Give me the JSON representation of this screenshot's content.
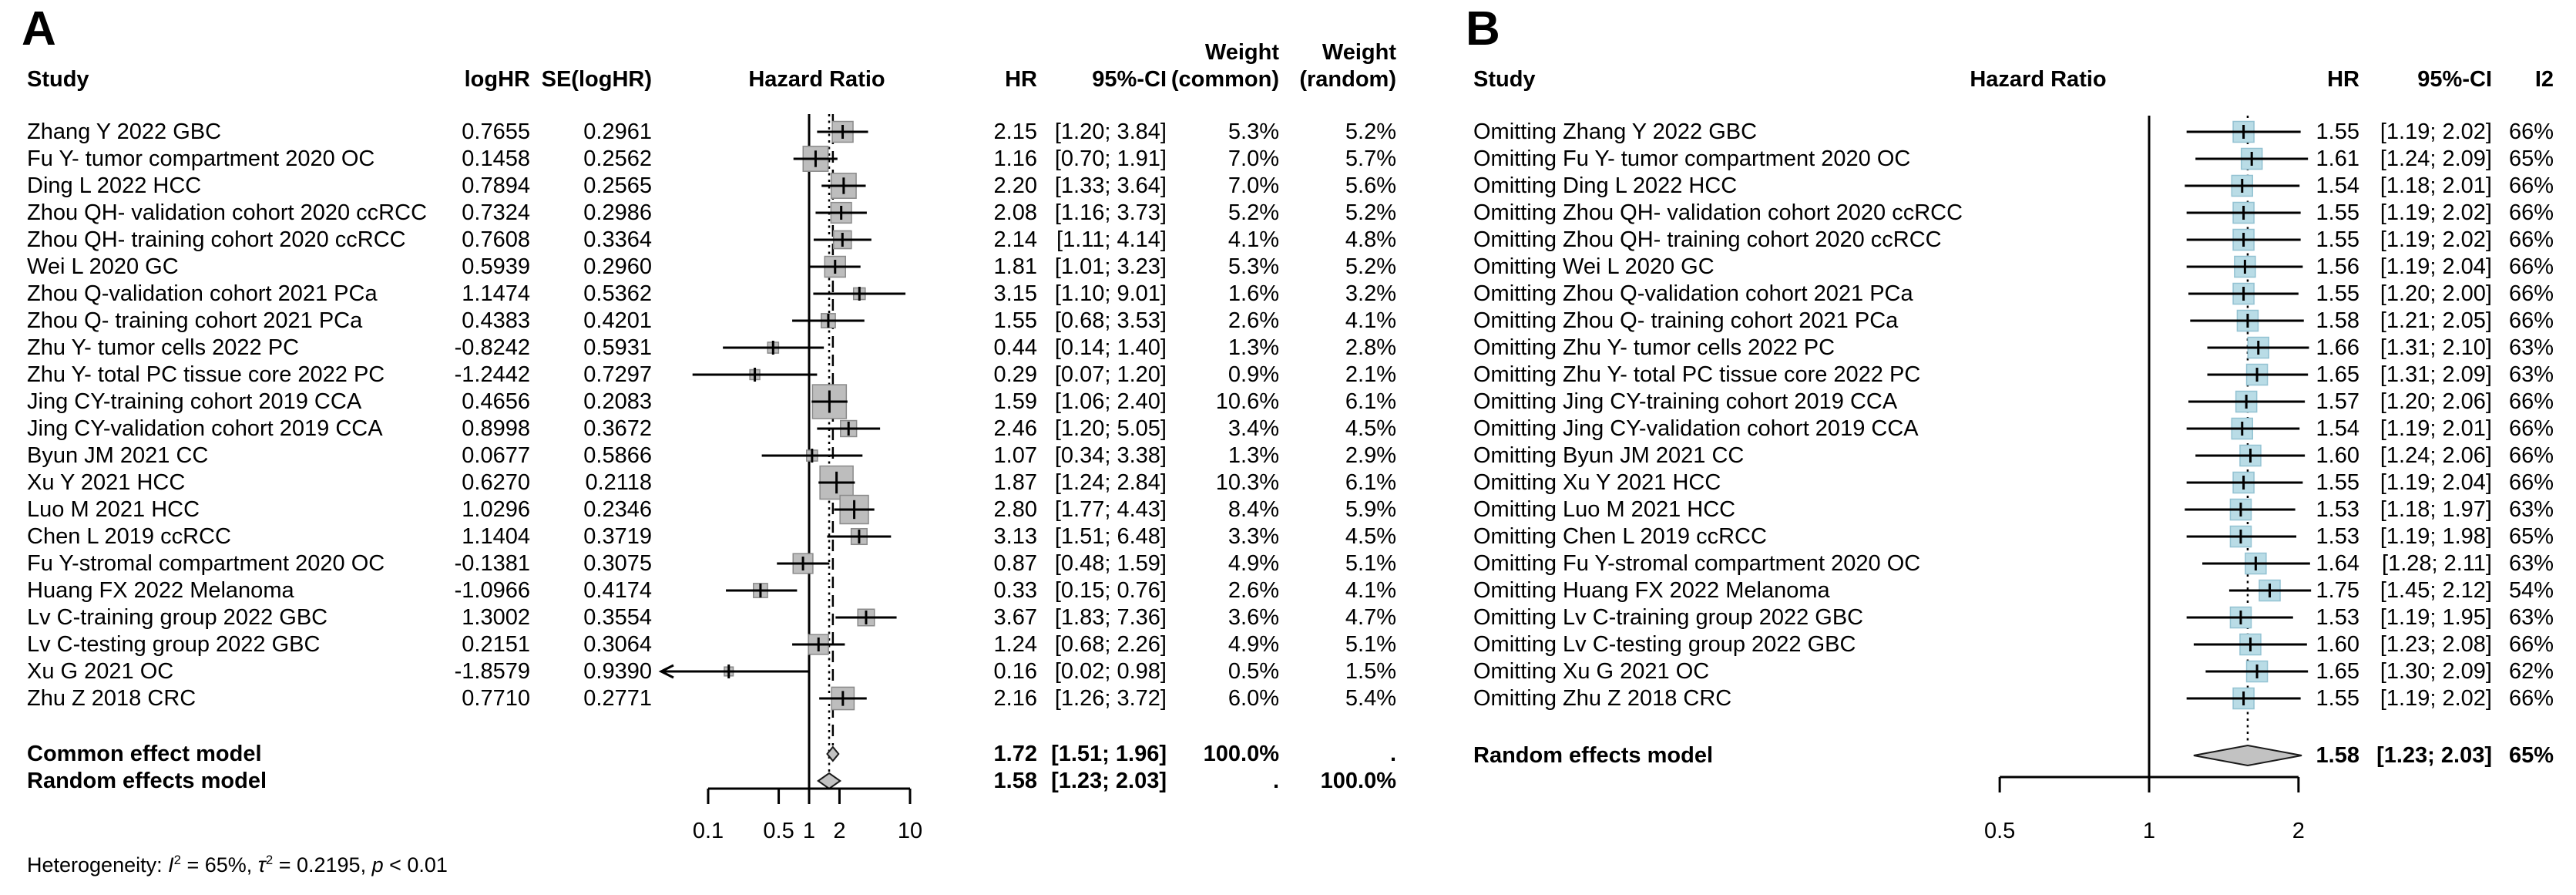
{
  "panelA": {
    "label": "A",
    "headers": {
      "study": "Study",
      "loghr": "logHR",
      "se": "SE(logHR)",
      "plot": "Hazard Ratio",
      "hr": "HR",
      "ci": "95%-CI",
      "weight": "Weight",
      "common": "(common)",
      "random": "(random)"
    },
    "heterogeneity": {
      "label": "Heterogeneity: ",
      "i_sym": "I",
      "sup": "2",
      "eq": " = ",
      "i2": "65%",
      "sep": ", ",
      "tau_sym": "τ",
      "eq2": " = ",
      "tau2": "0.2195",
      "sep2": ", ",
      "p_sym": "p",
      "end": " < 0.01"
    }
  },
  "panelB": {
    "label": "B",
    "headers": {
      "study": "Study",
      "plot": "Hazard Ratio",
      "hr": "HR",
      "ci": "95%-CI",
      "i2": "I2"
    }
  },
  "chart_data": [
    {
      "type": "forest",
      "panel": "A",
      "title": "Hazard Ratio",
      "xscale": "log",
      "xticks": [
        0.1,
        0.5,
        1,
        2,
        10
      ],
      "reference_line": 1,
      "heterogeneity_note": "I2 = 65%, tau2 = 0.2195, p < 0.01",
      "studies": [
        {
          "name": "Zhang Y 2022 GBC",
          "logHR": "0.7655",
          "SE": "0.2961",
          "hr": 2.15,
          "lo": 1.2,
          "hi": 3.84,
          "w_common": 5.3,
          "w_random": 5.2
        },
        {
          "name": "Fu Y- tumor compartment 2020 OC",
          "logHR": "0.1458",
          "SE": "0.2562",
          "hr": 1.16,
          "lo": 0.7,
          "hi": 1.91,
          "w_common": 7.0,
          "w_random": 5.7
        },
        {
          "name": "Ding L 2022 HCC",
          "logHR": "0.7894",
          "SE": "0.2565",
          "hr": 2.2,
          "lo": 1.33,
          "hi": 3.64,
          "w_common": 7.0,
          "w_random": 5.6
        },
        {
          "name": "Zhou QH- validation cohort 2020 ccRCC",
          "logHR": "0.7324",
          "SE": "0.2986",
          "hr": 2.08,
          "lo": 1.16,
          "hi": 3.73,
          "w_common": 5.2,
          "w_random": 5.2
        },
        {
          "name": "Zhou QH- training cohort 2020 ccRCC",
          "logHR": "0.7608",
          "SE": "0.3364",
          "hr": 2.14,
          "lo": 1.11,
          "hi": 4.14,
          "w_common": 4.1,
          "w_random": 4.8
        },
        {
          "name": "Wei L 2020 GC",
          "logHR": "0.5939",
          "SE": "0.2960",
          "hr": 1.81,
          "lo": 1.01,
          "hi": 3.23,
          "w_common": 5.3,
          "w_random": 5.2
        },
        {
          "name": "Zhou Q-validation cohort 2021 PCa",
          "logHR": "1.1474",
          "SE": "0.5362",
          "hr": 3.15,
          "lo": 1.1,
          "hi": 9.01,
          "w_common": 1.6,
          "w_random": 3.2
        },
        {
          "name": "Zhou Q- training cohort 2021 PCa",
          "logHR": "0.4383",
          "SE": "0.4201",
          "hr": 1.55,
          "lo": 0.68,
          "hi": 3.53,
          "w_common": 2.6,
          "w_random": 4.1
        },
        {
          "name": "Zhu Y- tumor cells 2022 PC",
          "logHR": "-0.8242",
          "SE": "0.5931",
          "hr": 0.44,
          "lo": 0.14,
          "hi": 1.4,
          "w_common": 1.3,
          "w_random": 2.8
        },
        {
          "name": "Zhu Y- total PC tissue core 2022 PC",
          "logHR": "-1.2442",
          "SE": "0.7297",
          "hr": 0.29,
          "lo": 0.07,
          "hi": 1.2,
          "w_common": 0.9,
          "w_random": 2.1
        },
        {
          "name": "Jing CY-training cohort 2019 CCA",
          "logHR": "0.4656",
          "SE": "0.2083",
          "hr": 1.59,
          "lo": 1.06,
          "hi": 2.4,
          "w_common": 10.6,
          "w_random": 6.1
        },
        {
          "name": "Jing CY-validation cohort 2019 CCA",
          "logHR": "0.8998",
          "SE": "0.3672",
          "hr": 2.46,
          "lo": 1.2,
          "hi": 5.05,
          "w_common": 3.4,
          "w_random": 4.5
        },
        {
          "name": "Byun JM 2021 CC",
          "logHR": "0.0677",
          "SE": "0.5866",
          "hr": 1.07,
          "lo": 0.34,
          "hi": 3.38,
          "w_common": 1.3,
          "w_random": 2.9
        },
        {
          "name": "Xu Y 2021 HCC",
          "logHR": "0.6270",
          "SE": "0.2118",
          "hr": 1.87,
          "lo": 1.24,
          "hi": 2.84,
          "w_common": 10.3,
          "w_random": 6.1
        },
        {
          "name": "Luo M 2021 HCC",
          "logHR": "1.0296",
          "SE": "0.2346",
          "hr": 2.8,
          "lo": 1.77,
          "hi": 4.43,
          "w_common": 8.4,
          "w_random": 5.9
        },
        {
          "name": "Chen L 2019 ccRCC",
          "logHR": "1.1404",
          "SE": "0.3719",
          "hr": 3.13,
          "lo": 1.51,
          "hi": 6.48,
          "w_common": 3.3,
          "w_random": 4.5
        },
        {
          "name": "Fu Y-stromal compartment 2020 OC",
          "logHR": "-0.1381",
          "SE": "0.3075",
          "hr": 0.87,
          "lo": 0.48,
          "hi": 1.59,
          "w_common": 4.9,
          "w_random": 5.1
        },
        {
          "name": "Huang FX 2022 Melanoma",
          "logHR": "-1.0966",
          "SE": "0.4174",
          "hr": 0.33,
          "lo": 0.15,
          "hi": 0.76,
          "w_common": 2.6,
          "w_random": 4.1
        },
        {
          "name": "Lv C-training group 2022 GBC",
          "logHR": "1.3002",
          "SE": "0.3554",
          "hr": 3.67,
          "lo": 1.83,
          "hi": 7.36,
          "w_common": 3.6,
          "w_random": 4.7
        },
        {
          "name": "Lv C-testing group 2022 GBC",
          "logHR": "0.2151",
          "SE": "0.3064",
          "hr": 1.24,
          "lo": 0.68,
          "hi": 2.26,
          "w_common": 4.9,
          "w_random": 5.1
        },
        {
          "name": "Xu G 2021 OC",
          "logHR": "-1.8579",
          "SE": "0.9390",
          "hr": 0.16,
          "lo": 0.02,
          "hi": 0.98,
          "w_common": 0.5,
          "w_random": 1.5
        },
        {
          "name": "Zhu Z 2018 CRC",
          "logHR": "0.7710",
          "SE": "0.2771",
          "hr": 2.16,
          "lo": 1.26,
          "hi": 3.72,
          "w_common": 6.0,
          "w_random": 5.4
        }
      ],
      "common_effect": {
        "label": "Common effect model",
        "hr": 1.72,
        "lo": 1.51,
        "hi": 1.96,
        "w_common": "100.0%",
        "w_random": "."
      },
      "random_effects": {
        "label": "Random effects model",
        "hr": 1.58,
        "lo": 1.23,
        "hi": 2.03,
        "w_common": ".",
        "w_random": "100.0%"
      }
    },
    {
      "type": "forest",
      "panel": "B",
      "title": "Hazard Ratio",
      "xscale": "log",
      "xticks": [
        0.5,
        1,
        2
      ],
      "reference_line": 1,
      "studies": [
        {
          "name": "Omitting Zhang Y 2022 GBC",
          "hr": 1.55,
          "lo": 1.19,
          "hi": 2.02,
          "i2": "66%"
        },
        {
          "name": "Omitting Fu Y- tumor compartment 2020 OC",
          "hr": 1.61,
          "lo": 1.24,
          "hi": 2.09,
          "i2": "65%"
        },
        {
          "name": "Omitting Ding L 2022 HCC",
          "hr": 1.54,
          "lo": 1.18,
          "hi": 2.01,
          "i2": "66%"
        },
        {
          "name": "Omitting Zhou QH- validation cohort 2020 ccRCC",
          "hr": 1.55,
          "lo": 1.19,
          "hi": 2.02,
          "i2": "66%"
        },
        {
          "name": "Omitting Zhou QH- training cohort 2020 ccRCC",
          "hr": 1.55,
          "lo": 1.19,
          "hi": 2.02,
          "i2": "66%"
        },
        {
          "name": "Omitting Wei L 2020 GC",
          "hr": 1.56,
          "lo": 1.19,
          "hi": 2.04,
          "i2": "66%"
        },
        {
          "name": "Omitting Zhou Q-validation cohort 2021 PCa",
          "hr": 1.55,
          "lo": 1.2,
          "hi": 2.0,
          "i2": "66%"
        },
        {
          "name": "Omitting Zhou Q- training cohort 2021 PCa",
          "hr": 1.58,
          "lo": 1.21,
          "hi": 2.05,
          "i2": "66%"
        },
        {
          "name": "Omitting Zhu Y- tumor cells 2022 PC",
          "hr": 1.66,
          "lo": 1.31,
          "hi": 2.1,
          "i2": "63%"
        },
        {
          "name": "Omitting Zhu Y- total PC tissue core 2022 PC",
          "hr": 1.65,
          "lo": 1.31,
          "hi": 2.09,
          "i2": "63%"
        },
        {
          "name": "Omitting Jing CY-training cohort 2019 CCA",
          "hr": 1.57,
          "lo": 1.2,
          "hi": 2.06,
          "i2": "66%"
        },
        {
          "name": "Omitting Jing CY-validation cohort 2019 CCA",
          "hr": 1.54,
          "lo": 1.19,
          "hi": 2.01,
          "i2": "66%"
        },
        {
          "name": "Omitting Byun JM 2021 CC",
          "hr": 1.6,
          "lo": 1.24,
          "hi": 2.06,
          "i2": "66%"
        },
        {
          "name": "Omitting Xu Y 2021 HCC",
          "hr": 1.55,
          "lo": 1.19,
          "hi": 2.04,
          "i2": "66%"
        },
        {
          "name": "Omitting Luo M 2021 HCC",
          "hr": 1.53,
          "lo": 1.18,
          "hi": 1.97,
          "i2": "63%"
        },
        {
          "name": "Omitting Chen L 2019 ccRCC",
          "hr": 1.53,
          "lo": 1.19,
          "hi": 1.98,
          "i2": "65%"
        },
        {
          "name": "Omitting Fu Y-stromal compartment 2020 OC",
          "hr": 1.64,
          "lo": 1.28,
          "hi": 2.11,
          "i2": "63%"
        },
        {
          "name": "Omitting Huang FX 2022 Melanoma",
          "hr": 1.75,
          "lo": 1.45,
          "hi": 2.12,
          "i2": "54%"
        },
        {
          "name": "Omitting Lv C-training group 2022 GBC",
          "hr": 1.53,
          "lo": 1.19,
          "hi": 1.95,
          "i2": "63%"
        },
        {
          "name": "Omitting Lv C-testing group 2022 GBC",
          "hr": 1.6,
          "lo": 1.23,
          "hi": 2.08,
          "i2": "66%"
        },
        {
          "name": "Omitting Xu G 2021 OC",
          "hr": 1.65,
          "lo": 1.3,
          "hi": 2.09,
          "i2": "62%"
        },
        {
          "name": "Omitting Zhu Z 2018 CRC",
          "hr": 1.55,
          "lo": 1.19,
          "hi": 2.02,
          "i2": "66%"
        }
      ],
      "random_effects": {
        "label": "Random effects model",
        "hr": 1.58,
        "lo": 1.23,
        "hi": 2.03,
        "i2": "65%"
      }
    }
  ]
}
